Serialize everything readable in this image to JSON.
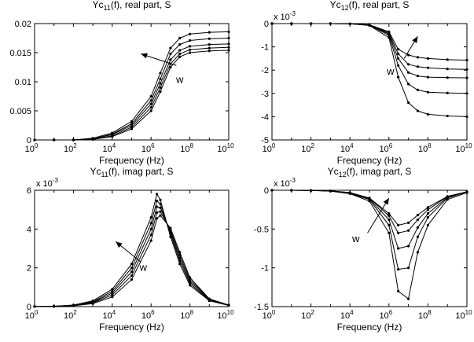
{
  "figure": {
    "background": "#ffffff",
    "line_color": "#000000"
  },
  "chart_data": [
    {
      "id": "p11r",
      "type": "line",
      "title_main": "Yc",
      "title_sub": "11",
      "title_rest": "(f), real part, S",
      "title": "Yc11(f), real part, S",
      "xlabel": "Frequency (Hz)",
      "ylabel": "",
      "xscale": "log",
      "xlim": [
        1,
        10000000000
      ],
      "ylim": [
        0,
        0.02
      ],
      "xticks": [
        1,
        100,
        10000,
        1000000,
        100000000,
        10000000000
      ],
      "xtick_labels": [
        {
          "base": "10",
          "exp": "0"
        },
        {
          "base": "10",
          "exp": "2"
        },
        {
          "base": "10",
          "exp": "4"
        },
        {
          "base": "10",
          "exp": "6"
        },
        {
          "base": "10",
          "exp": "8"
        },
        {
          "base": "10",
          "exp": "10"
        }
      ],
      "yticks": [
        0,
        0.005,
        0.01,
        0.015,
        0.02
      ],
      "ytick_labels": [
        "0",
        "0.005",
        "0.01",
        "0.015",
        "0.02"
      ],
      "exponent_label": "",
      "x": [
        1,
        10,
        100,
        1000,
        10000,
        100000,
        1000000,
        3000000,
        10000000,
        30000000,
        100000000,
        1000000000,
        10000000000
      ],
      "series": [
        {
          "values": [
            0,
            0,
            0,
            0.0003,
            0.0012,
            0.0032,
            0.0075,
            0.0115,
            0.0158,
            0.0175,
            0.0182,
            0.0185,
            0.0186
          ]
        },
        {
          "values": [
            0,
            0,
            0,
            0.0002,
            0.001,
            0.0028,
            0.0068,
            0.0105,
            0.0148,
            0.0164,
            0.0171,
            0.0174,
            0.0175
          ]
        },
        {
          "values": [
            0,
            0,
            0,
            0.0002,
            0.0009,
            0.0025,
            0.0062,
            0.0097,
            0.0138,
            0.0154,
            0.0161,
            0.0164,
            0.0165
          ]
        },
        {
          "values": [
            0,
            0,
            0,
            0.0001,
            0.0007,
            0.0022,
            0.0056,
            0.009,
            0.0131,
            0.0148,
            0.0155,
            0.0158,
            0.0159
          ]
        },
        {
          "values": [
            0,
            0,
            0,
            0.0001,
            0.0006,
            0.0019,
            0.005,
            0.0083,
            0.0125,
            0.0143,
            0.015,
            0.0153,
            0.0154
          ]
        }
      ],
      "annotation": {
        "label": "w",
        "arrow_from": [
          20000000,
          0.0128
        ],
        "arrow_to": [
          300000,
          0.0148
        ],
        "label_at": [
          30000000,
          0.0098
        ]
      }
    },
    {
      "id": "p12r",
      "type": "line",
      "title_main": "Yc",
      "title_sub": "12",
      "title_rest": "(f), real part, S",
      "title": "Yc12(f), real part, S",
      "xlabel": "Frequency (Hz)",
      "ylabel": "",
      "xscale": "log",
      "xlim": [
        1,
        10000000000
      ],
      "ylim": [
        -5,
        0
      ],
      "xticks": [
        1,
        100,
        10000,
        1000000,
        100000000,
        10000000000
      ],
      "xtick_labels": [
        {
          "base": "10",
          "exp": "0"
        },
        {
          "base": "10",
          "exp": "2"
        },
        {
          "base": "10",
          "exp": "4"
        },
        {
          "base": "10",
          "exp": "6"
        },
        {
          "base": "10",
          "exp": "8"
        },
        {
          "base": "10",
          "exp": "10"
        }
      ],
      "yticks": [
        -5,
        -4,
        -3,
        -2,
        -1,
        0
      ],
      "ytick_labels": [
        "-5",
        "-4",
        "-3",
        "-2",
        "-1",
        "0"
      ],
      "exponent_label": "x 10",
      "exponent_power": "-3",
      "x": [
        1,
        10,
        100,
        1000,
        10000,
        100000,
        1000000,
        3000000,
        10000000,
        30000000,
        100000000,
        1000000000,
        10000000000
      ],
      "series": [
        {
          "values": [
            0,
            0,
            0,
            0,
            -0.01,
            -0.05,
            -0.35,
            -1.1,
            -1.35,
            -1.45,
            -1.5,
            -1.55,
            -1.57
          ]
        },
        {
          "values": [
            0,
            0,
            0,
            0,
            -0.01,
            -0.06,
            -0.4,
            -1.3,
            -1.75,
            -1.85,
            -1.9,
            -1.95,
            -1.97
          ]
        },
        {
          "values": [
            0,
            0,
            0,
            0,
            -0.01,
            -0.06,
            -0.45,
            -1.5,
            -2.1,
            -2.25,
            -2.3,
            -2.32,
            -2.33
          ]
        },
        {
          "values": [
            0,
            0,
            0,
            0,
            -0.01,
            -0.07,
            -0.5,
            -1.8,
            -2.6,
            -2.85,
            -2.95,
            -2.98,
            -3.0
          ]
        },
        {
          "values": [
            0,
            0,
            0,
            0,
            -0.01,
            -0.08,
            -0.6,
            -2.3,
            -3.4,
            -3.75,
            -3.9,
            -3.97,
            -4.0
          ]
        }
      ],
      "annotation": {
        "label": "w",
        "arrow_from": [
          6000000,
          -1.5
        ],
        "arrow_to": [
          30000000,
          -0.55
        ],
        "label_at": [
          1200000,
          -2.2
        ]
      }
    },
    {
      "id": "p11i",
      "type": "line",
      "title_main": "Yc",
      "title_sub": "11",
      "title_rest": "(f), imag part, S",
      "title": "Yc11(f), imag part, S",
      "xlabel": "Frequency (Hz)",
      "ylabel": "",
      "xscale": "log",
      "xlim": [
        1,
        10000000000
      ],
      "ylim": [
        0,
        6
      ],
      "xticks": [
        1,
        100,
        10000,
        1000000,
        100000000,
        10000000000
      ],
      "xtick_labels": [
        {
          "base": "10",
          "exp": "0"
        },
        {
          "base": "10",
          "exp": "2"
        },
        {
          "base": "10",
          "exp": "4"
        },
        {
          "base": "10",
          "exp": "6"
        },
        {
          "base": "10",
          "exp": "8"
        },
        {
          "base": "10",
          "exp": "10"
        }
      ],
      "yticks": [
        0,
        2,
        4,
        6
      ],
      "ytick_labels": [
        "0",
        "2",
        "4",
        "6"
      ],
      "exponent_label": "x 10",
      "exponent_power": "-3",
      "x": [
        1,
        10,
        100,
        1000,
        10000,
        100000,
        1000000,
        2000000,
        3000000,
        10000000,
        30000000,
        100000000,
        1000000000,
        10000000000
      ],
      "series": [
        {
          "values": [
            0.005,
            0.02,
            0.08,
            0.3,
            0.9,
            2.2,
            4.6,
            5.8,
            5.5,
            3.6,
            2.2,
            1.1,
            0.3,
            0.06
          ]
        },
        {
          "values": [
            0.004,
            0.02,
            0.07,
            0.25,
            0.8,
            2.0,
            4.3,
            5.45,
            5.3,
            3.75,
            2.35,
            1.2,
            0.32,
            0.07
          ]
        },
        {
          "values": [
            0.004,
            0.015,
            0.06,
            0.22,
            0.7,
            1.8,
            4.0,
            5.15,
            5.1,
            3.85,
            2.5,
            1.3,
            0.35,
            0.07
          ]
        },
        {
          "values": [
            0.003,
            0.013,
            0.05,
            0.19,
            0.6,
            1.6,
            3.7,
            4.85,
            4.9,
            3.95,
            2.65,
            1.4,
            0.38,
            0.08
          ]
        },
        {
          "values": [
            0.003,
            0.011,
            0.04,
            0.16,
            0.5,
            1.4,
            3.4,
            4.55,
            4.7,
            4.05,
            2.8,
            1.5,
            0.4,
            0.08
          ]
        }
      ],
      "annotation": {
        "label": "w",
        "arrow_from": [
          300000,
          2.3
        ],
        "arrow_to": [
          15000,
          3.35
        ],
        "label_at": [
          400000,
          1.85
        ]
      }
    },
    {
      "id": "p12i",
      "type": "line",
      "title_main": "Yc",
      "title_sub": "12",
      "title_rest": "(f), imag part, S",
      "title": "Yc12(f), imag part, S",
      "xlabel": "Frequency (Hz)",
      "ylabel": "",
      "xscale": "log",
      "xlim": [
        1,
        10000000000
      ],
      "ylim": [
        -1.5,
        0
      ],
      "xticks": [
        1,
        100,
        10000,
        1000000,
        100000000,
        10000000000
      ],
      "xtick_labels": [
        {
          "base": "10",
          "exp": "0"
        },
        {
          "base": "10",
          "exp": "2"
        },
        {
          "base": "10",
          "exp": "4"
        },
        {
          "base": "10",
          "exp": "6"
        },
        {
          "base": "10",
          "exp": "8"
        },
        {
          "base": "10",
          "exp": "10"
        }
      ],
      "yticks": [
        -1.5,
        -1,
        -0.5,
        0
      ],
      "ytick_labels": [
        "-1.5",
        "-1",
        "-0.5",
        "0"
      ],
      "exponent_label": "x 10",
      "exponent_power": "-3",
      "x": [
        1,
        10,
        100,
        1000,
        10000,
        100000,
        1000000,
        3000000,
        10000000,
        30000000,
        100000000,
        1000000000,
        10000000000
      ],
      "series": [
        {
          "values": [
            0,
            0,
            -0.002,
            -0.008,
            -0.03,
            -0.1,
            -0.3,
            -0.45,
            -0.42,
            -0.32,
            -0.22,
            -0.08,
            -0.02
          ]
        },
        {
          "values": [
            0,
            0,
            -0.002,
            -0.008,
            -0.03,
            -0.1,
            -0.33,
            -0.55,
            -0.52,
            -0.38,
            -0.25,
            -0.08,
            -0.02
          ]
        },
        {
          "values": [
            0,
            0,
            -0.002,
            -0.009,
            -0.035,
            -0.11,
            -0.38,
            -0.75,
            -0.72,
            -0.48,
            -0.3,
            -0.09,
            -0.02
          ]
        },
        {
          "values": [
            0,
            0,
            -0.003,
            -0.01,
            -0.04,
            -0.12,
            -0.45,
            -1.02,
            -1.0,
            -0.6,
            -0.35,
            -0.1,
            -0.02
          ]
        },
        {
          "values": [
            0,
            0,
            -0.003,
            -0.011,
            -0.045,
            -0.14,
            -0.55,
            -1.3,
            -1.4,
            -0.8,
            -0.45,
            -0.12,
            -0.03
          ]
        }
      ],
      "annotation": {
        "label": "w",
        "arrow_from": [
          80000,
          -0.55
        ],
        "arrow_to": [
          1000000,
          -0.1
        ],
        "label_at": [
          20000,
          -0.67
        ]
      }
    }
  ]
}
